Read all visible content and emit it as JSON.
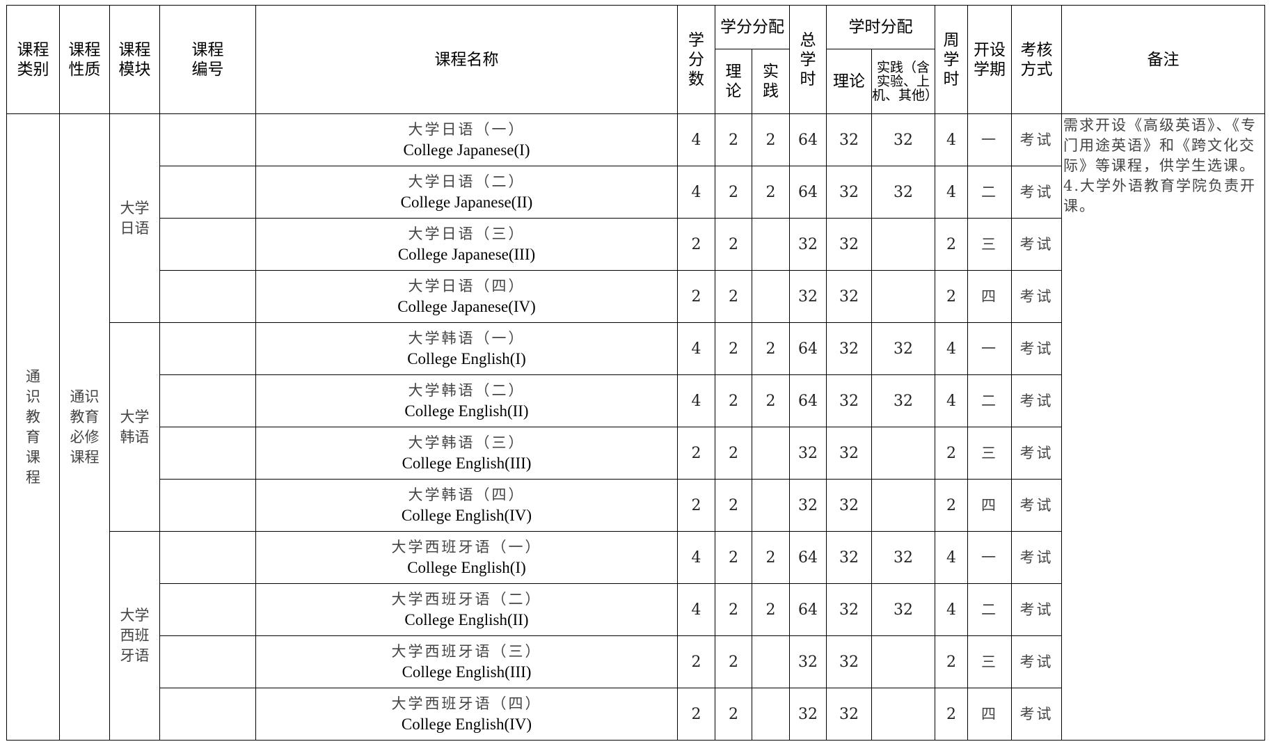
{
  "headers": {
    "category": "课程类别",
    "nature": "课程性质",
    "module": "课程模块",
    "code": "课程编号",
    "name": "课程名称",
    "credits": "学分数",
    "credit_split": "学分分配",
    "credit_theory": "理论",
    "credit_practice": "实践",
    "total_hours": "总学时",
    "hour_split": "学时分配",
    "hour_theory": "理论",
    "hour_practice": "实践（含实验、上机、其他）",
    "weekly_hours": "周学时",
    "semester": "开设学期",
    "assessment": "考核方式",
    "remarks": "备注"
  },
  "category": "通识教育课程",
  "nature": "通识教育必修课程",
  "remarks": "需求开设《高级英语》、《专门用途英语》和《跨文化交际》等课程，供学生选课。\n4.大学外语教育学院负责开课。",
  "modules": [
    {
      "name": "大学日语",
      "rows": [
        {
          "cn": "大学日语（一）",
          "en": "College Japanese(I)",
          "credits": "4",
          "ct": "2",
          "cp": "2",
          "total": "64",
          "ht": "32",
          "hp": "32",
          "weekly": "4",
          "sem": "一",
          "assess": "考试"
        },
        {
          "cn": "大学日语（二）",
          "en": "College Japanese(II)",
          "credits": "4",
          "ct": "2",
          "cp": "2",
          "total": "64",
          "ht": "32",
          "hp": "32",
          "weekly": "4",
          "sem": "二",
          "assess": "考试"
        },
        {
          "cn": "大学日语（三）",
          "en": "College Japanese(III)",
          "credits": "2",
          "ct": "2",
          "cp": "",
          "total": "32",
          "ht": "32",
          "hp": "",
          "weekly": "2",
          "sem": "三",
          "assess": "考试"
        },
        {
          "cn": "大学日语（四）",
          "en": "College Japanese(IV)",
          "credits": "2",
          "ct": "2",
          "cp": "",
          "total": "32",
          "ht": "32",
          "hp": "",
          "weekly": "2",
          "sem": "四",
          "assess": "考试"
        }
      ]
    },
    {
      "name": "大学韩语",
      "rows": [
        {
          "cn": "大学韩语（一）",
          "en": "College English(I)",
          "credits": "4",
          "ct": "2",
          "cp": "2",
          "total": "64",
          "ht": "32",
          "hp": "32",
          "weekly": "4",
          "sem": "一",
          "assess": "考试"
        },
        {
          "cn": "大学韩语（二）",
          "en": "College English(II)",
          "credits": "4",
          "ct": "2",
          "cp": "2",
          "total": "64",
          "ht": "32",
          "hp": "32",
          "weekly": "4",
          "sem": "二",
          "assess": "考试"
        },
        {
          "cn": "大学韩语（三）",
          "en": "College English(III)",
          "credits": "2",
          "ct": "2",
          "cp": "",
          "total": "32",
          "ht": "32",
          "hp": "",
          "weekly": "2",
          "sem": "三",
          "assess": "考试"
        },
        {
          "cn": "大学韩语（四）",
          "en": "College English(IV)",
          "credits": "2",
          "ct": "2",
          "cp": "",
          "total": "32",
          "ht": "32",
          "hp": "",
          "weekly": "2",
          "sem": "四",
          "assess": "考试"
        }
      ]
    },
    {
      "name": "大学西班牙语",
      "rows": [
        {
          "cn": "大学西班牙语（一）",
          "en": "College English(I)",
          "credits": "4",
          "ct": "2",
          "cp": "2",
          "total": "64",
          "ht": "32",
          "hp": "32",
          "weekly": "4",
          "sem": "一",
          "assess": "考试"
        },
        {
          "cn": "大学西班牙语（二）",
          "en": "College English(II)",
          "credits": "4",
          "ct": "2",
          "cp": "2",
          "total": "64",
          "ht": "32",
          "hp": "32",
          "weekly": "4",
          "sem": "二",
          "assess": "考试"
        },
        {
          "cn": "大学西班牙语（三）",
          "en": "College English(III)",
          "credits": "2",
          "ct": "2",
          "cp": "",
          "total": "32",
          "ht": "32",
          "hp": "",
          "weekly": "2",
          "sem": "三",
          "assess": "考试"
        },
        {
          "cn": "大学西班牙语（四）",
          "en": "College English(IV)",
          "credits": "2",
          "ct": "2",
          "cp": "",
          "total": "32",
          "ht": "32",
          "hp": "",
          "weekly": "2",
          "sem": "四",
          "assess": "考试"
        }
      ]
    }
  ]
}
